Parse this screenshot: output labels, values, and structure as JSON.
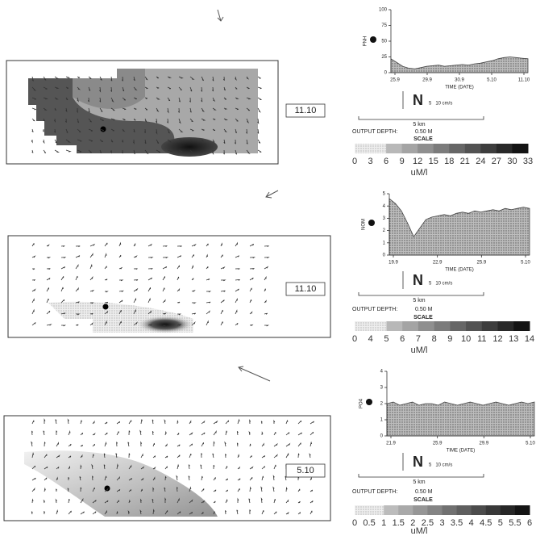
{
  "chart_data": [
    {
      "type": "area",
      "y_label": "PNH",
      "x_label": "TIME (DATE)",
      "xticks": [
        "25.9",
        "29.9",
        "30.9",
        "5.10",
        "11.10"
      ],
      "values": [
        22,
        16,
        10,
        7,
        6,
        8,
        10,
        11,
        12,
        10,
        11,
        12,
        13,
        12,
        14,
        15,
        17,
        19,
        22,
        24,
        25,
        24,
        23,
        22
      ],
      "color": "#9a9a9a",
      "ylim": [
        0,
        100
      ],
      "yticks": [
        0,
        25,
        50,
        75,
        100
      ]
    },
    {
      "type": "area",
      "y_label": "NOM",
      "x_label": "TIME (DATE)",
      "xticks": [
        "19.9",
        "22.9",
        "25.9",
        "5.10"
      ],
      "values": [
        4.6,
        4.2,
        3.6,
        2.6,
        1.5,
        2.2,
        2.9,
        3.1,
        3.2,
        3.3,
        3.2,
        3.4,
        3.5,
        3.4,
        3.6,
        3.5,
        3.6,
        3.7,
        3.6,
        3.8,
        3.7,
        3.8,
        3.9,
        3.8
      ],
      "color": "#9a9a9a",
      "ylim": [
        0,
        5
      ],
      "yticks": [
        0,
        1,
        2,
        3,
        4,
        5
      ]
    },
    {
      "type": "area",
      "y_label": "PO4",
      "x_label": "TIME (DATE)",
      "xticks": [
        "21.9",
        "25.9",
        "29.9",
        "5.10"
      ],
      "values": [
        2.0,
        2.1,
        1.9,
        2.0,
        2.1,
        1.9,
        2.0,
        2.0,
        1.9,
        2.1,
        2.0,
        1.9,
        2.0,
        2.1,
        2.0,
        1.9,
        2.0,
        2.1,
        2.0,
        1.9,
        2.0,
        2.1,
        2.0,
        2.1
      ],
      "color": "#9a9a9a",
      "ylim": [
        0,
        4
      ],
      "yticks": [
        0,
        1,
        2,
        3,
        4
      ]
    }
  ],
  "panels": [
    {
      "map_label": "11.10",
      "north": "N",
      "vector_scale": "5   10 cm/s",
      "scale_bar": "5 km",
      "depth_label": "OUTPUT DEPTH:",
      "depth": "0.50 M",
      "scale_title": "SCALE",
      "colorbar_labels": [
        0,
        3,
        6,
        9,
        12,
        15,
        18,
        21,
        24,
        27,
        30,
        33
      ],
      "unit": "uM/l"
    },
    {
      "map_label": "11.10",
      "north": "N",
      "vector_scale": "5   10 cm/s",
      "scale_bar": "5 km",
      "depth_label": "OUTPUT DEPTH:",
      "depth": "0.50 M",
      "scale_title": "SCALE",
      "colorbar_labels": [
        0,
        4,
        5,
        6,
        7,
        8,
        9,
        10,
        11,
        12,
        13,
        14
      ],
      "unit": "uM/l"
    },
    {
      "map_label": "5.10",
      "north": "N",
      "vector_scale": "5   10 cm/s",
      "scale_bar": "5 km",
      "depth_label": "OUTPUT DEPTH:",
      "depth": "0.50 M",
      "scale_title": "SCALE",
      "colorbar_labels": [
        0,
        0.5,
        1,
        1.5,
        2,
        2.5,
        3,
        3.5,
        4,
        4.5,
        5,
        5.5,
        6
      ],
      "unit": "uM/l"
    }
  ]
}
